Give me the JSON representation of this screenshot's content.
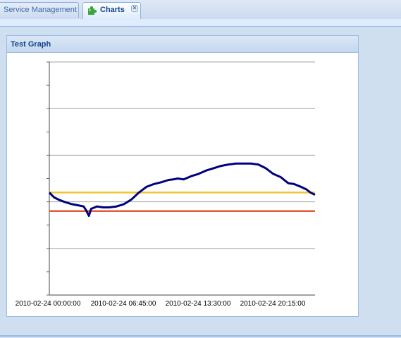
{
  "tabs": [
    {
      "label": "Service Management",
      "icon": "none",
      "active": false
    },
    {
      "label": "Charts",
      "icon": "puzzle-icon",
      "active": true,
      "close": "✕"
    }
  ],
  "panel": {
    "title": "Test Graph"
  },
  "chart_data": {
    "type": "line",
    "title": "Test Graph",
    "xlabel": "",
    "ylabel": "",
    "x_tick_labels": [
      "2010-02-24 00:00:00",
      "2010-02-24 06:45:00",
      "2010-02-24 13:30:00",
      "2010-02-24 20:15:00"
    ],
    "grid": true,
    "ylim": [
      0,
      5
    ],
    "series": [
      {
        "color": "#00007f",
        "points": [
          [
            0,
            2.2
          ],
          [
            0.3,
            2.1
          ],
          [
            0.6,
            2.05
          ],
          [
            1,
            2.0
          ],
          [
            1.5,
            1.95
          ],
          [
            2,
            1.92
          ],
          [
            2.3,
            1.9
          ],
          [
            2.5,
            1.8
          ],
          [
            2.65,
            1.7
          ],
          [
            2.8,
            1.85
          ],
          [
            3.2,
            1.9
          ],
          [
            3.6,
            1.88
          ],
          [
            4,
            1.88
          ],
          [
            4.5,
            1.9
          ],
          [
            5,
            1.95
          ],
          [
            5.5,
            2.05
          ],
          [
            6,
            2.2
          ],
          [
            6.5,
            2.32
          ],
          [
            7,
            2.38
          ],
          [
            7.5,
            2.42
          ],
          [
            8,
            2.47
          ],
          [
            8.3,
            2.48
          ],
          [
            8.6,
            2.5
          ],
          [
            9,
            2.48
          ],
          [
            9.5,
            2.55
          ],
          [
            10,
            2.6
          ],
          [
            10.5,
            2.67
          ],
          [
            11,
            2.72
          ],
          [
            11.5,
            2.77
          ],
          [
            12,
            2.8
          ],
          [
            12.5,
            2.82
          ],
          [
            13,
            2.82
          ],
          [
            13.5,
            2.82
          ],
          [
            14,
            2.8
          ],
          [
            14.5,
            2.72
          ],
          [
            15,
            2.6
          ],
          [
            15.5,
            2.53
          ],
          [
            16,
            2.4
          ],
          [
            16.4,
            2.38
          ],
          [
            16.8,
            2.33
          ],
          [
            17.2,
            2.27
          ],
          [
            17.5,
            2.2
          ],
          [
            17.8,
            2.15
          ]
        ]
      },
      {
        "color": "#f4c430",
        "points": [
          [
            0,
            2.2
          ],
          [
            17.8,
            2.2
          ]
        ]
      },
      {
        "color": "#e85a3c",
        "points": [
          [
            0,
            1.8
          ],
          [
            17.8,
            1.8
          ]
        ]
      }
    ]
  },
  "colors": {
    "accent": "#15428b",
    "border": "#99bbe8"
  }
}
